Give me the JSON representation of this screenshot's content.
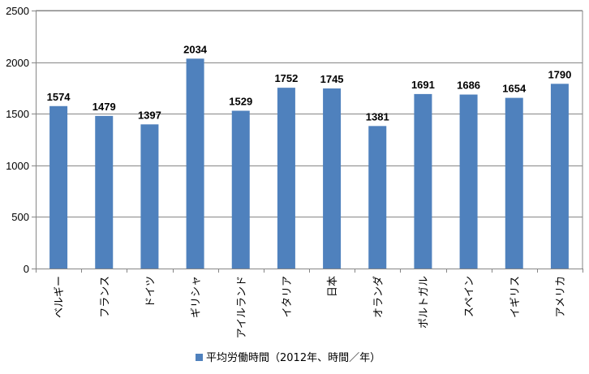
{
  "chart_data": {
    "type": "bar",
    "categories": [
      "ベルギー",
      "フランス",
      "ドイツ",
      "ギリシャ",
      "アイルランド",
      "イタリア",
      "日本",
      "オランダ",
      "ポルトガル",
      "スペイン",
      "イギリス",
      "アメリカ"
    ],
    "series": [
      {
        "name": "平均労働時間（2012年、時間／年）",
        "values": [
          1574,
          1479,
          1397,
          2034,
          1529,
          1752,
          1745,
          1381,
          1691,
          1686,
          1654,
          1790
        ],
        "color": "#4f81bd"
      }
    ],
    "ylim": [
      0,
      2500
    ],
    "yticks": [
      0,
      500,
      1000,
      1500,
      2000,
      2500
    ],
    "grid": "horizontal",
    "legend": "bottom",
    "data_labels": true
  }
}
